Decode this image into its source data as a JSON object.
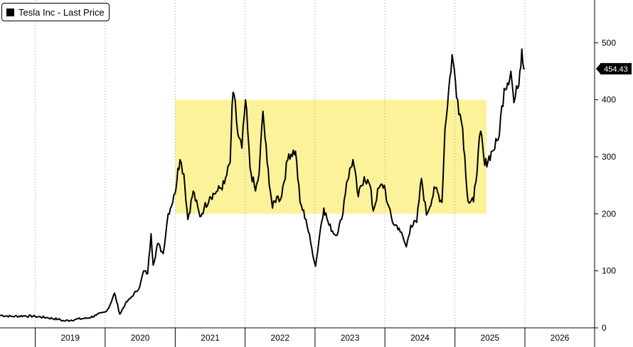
{
  "chart_data": {
    "type": "line",
    "title": "",
    "legend": {
      "label": "Tesla Inc - Last Price",
      "placement": "top-left"
    },
    "last_price_label": "454.43",
    "last_value": 454.43,
    "xlabel": "",
    "ylabel": "",
    "ylim": [
      0,
      575
    ],
    "yticks": [
      "0",
      "100",
      "200",
      "300",
      "400",
      "500"
    ],
    "x_range": [
      "2018-07-01",
      "2026-12-31"
    ],
    "xticks": [
      "2019",
      "2020",
      "2021",
      "2022",
      "2023",
      "2024",
      "2025",
      "2026"
    ],
    "xtick_years": [
      2019,
      2020,
      2021,
      2022,
      2023,
      2024,
      2025,
      2026
    ],
    "highlight_region": {
      "x_start": "2021-01-01",
      "x_end": "2025-06-15",
      "y_low": 200,
      "y_high": 400,
      "color": "#fcf29a"
    },
    "line_color": "#000000",
    "grid": "vertical dotted at year boundaries",
    "series": [
      {
        "values": [
          [
            "2018-07-01",
            22
          ],
          [
            "2018-09-01",
            20
          ],
          [
            "2018-11-01",
            21
          ],
          [
            "2019-01-01",
            20
          ],
          [
            "2019-03-01",
            18
          ],
          [
            "2019-05-01",
            15
          ],
          [
            "2019-06-01",
            12
          ],
          [
            "2019-08-01",
            15
          ],
          [
            "2019-10-01",
            17
          ],
          [
            "2019-11-15",
            22
          ],
          [
            "2019-12-31",
            28
          ],
          [
            "2020-01-20",
            35
          ],
          [
            "2020-02-19",
            61
          ],
          [
            "2020-03-18",
            24
          ],
          [
            "2020-04-15",
            42
          ],
          [
            "2020-05-20",
            55
          ],
          [
            "2020-06-30",
            72
          ],
          [
            "2020-07-20",
            100
          ],
          [
            "2020-08-10",
            95
          ],
          [
            "2020-08-28",
            165
          ],
          [
            "2020-09-08",
            110
          ],
          [
            "2020-10-01",
            148
          ],
          [
            "2020-10-30",
            130
          ],
          [
            "2020-11-25",
            200
          ],
          [
            "2020-12-31",
            235
          ],
          [
            "2021-01-15",
            280
          ],
          [
            "2021-01-26",
            295
          ],
          [
            "2021-02-15",
            270
          ],
          [
            "2021-03-08",
            190
          ],
          [
            "2021-04-05",
            240
          ],
          [
            "2021-05-10",
            195
          ],
          [
            "2021-06-01",
            210
          ],
          [
            "2021-07-01",
            230
          ],
          [
            "2021-08-10",
            240
          ],
          [
            "2021-09-15",
            253
          ],
          [
            "2021-10-15",
            290
          ],
          [
            "2021-10-25",
            390
          ],
          [
            "2021-11-04",
            410
          ],
          [
            "2021-11-24",
            340
          ],
          [
            "2021-12-15",
            315
          ],
          [
            "2022-01-03",
            400
          ],
          [
            "2022-01-27",
            280
          ],
          [
            "2022-02-24",
            240
          ],
          [
            "2022-03-15",
            270
          ],
          [
            "2022-04-04",
            380
          ],
          [
            "2022-04-26",
            290
          ],
          [
            "2022-05-24",
            210
          ],
          [
            "2022-06-15",
            230
          ],
          [
            "2022-07-05",
            225
          ],
          [
            "2022-08-17",
            305
          ],
          [
            "2022-09-21",
            310
          ],
          [
            "2022-10-15",
            220
          ],
          [
            "2022-11-15",
            190
          ],
          [
            "2022-12-15",
            140
          ],
          [
            "2023-01-04",
            108
          ],
          [
            "2023-02-01",
            180
          ],
          [
            "2023-02-16",
            210
          ],
          [
            "2023-03-15",
            180
          ],
          [
            "2023-04-20",
            162
          ],
          [
            "2023-05-20",
            190
          ],
          [
            "2023-06-15",
            255
          ],
          [
            "2023-07-18",
            295
          ],
          [
            "2023-08-15",
            230
          ],
          [
            "2023-09-15",
            265
          ],
          [
            "2023-10-15",
            250
          ],
          [
            "2023-11-01",
            205
          ],
          [
            "2023-11-30",
            245
          ],
          [
            "2023-12-29",
            250
          ],
          [
            "2024-01-15",
            218
          ],
          [
            "2024-02-10",
            185
          ],
          [
            "2024-03-15",
            175
          ],
          [
            "2024-04-22",
            142
          ],
          [
            "2024-05-15",
            180
          ],
          [
            "2024-06-15",
            185
          ],
          [
            "2024-07-10",
            262
          ],
          [
            "2024-08-05",
            198
          ],
          [
            "2024-09-20",
            245
          ],
          [
            "2024-10-25",
            220
          ],
          [
            "2024-11-10",
            350
          ],
          [
            "2024-12-17",
            479
          ],
          [
            "2025-01-15",
            400
          ],
          [
            "2025-02-10",
            350
          ],
          [
            "2025-03-10",
            222
          ],
          [
            "2025-04-08",
            221
          ],
          [
            "2025-05-15",
            345
          ],
          [
            "2025-06-05",
            285
          ],
          [
            "2025-07-15",
            310
          ],
          [
            "2025-08-15",
            330
          ],
          [
            "2025-09-15",
            420
          ],
          [
            "2025-10-20",
            450
          ],
          [
            "2025-11-05",
            395
          ],
          [
            "2025-11-25",
            420
          ],
          [
            "2025-12-16",
            489
          ],
          [
            "2025-12-31",
            454.43
          ]
        ]
      }
    ]
  }
}
